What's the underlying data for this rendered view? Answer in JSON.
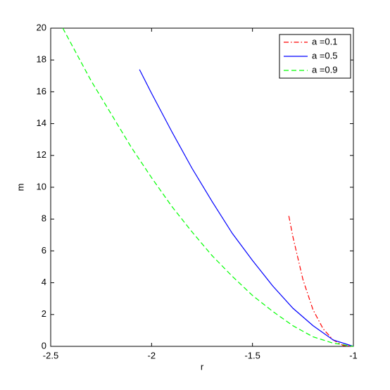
{
  "chart_data": {
    "type": "line",
    "xlabel": "r",
    "ylabel": "m",
    "xlim": [
      -2.5,
      -1
    ],
    "xticks": [
      -2.5,
      -2,
      -1.5,
      -1
    ],
    "ylim": [
      0,
      20
    ],
    "yticks": [
      0,
      2,
      4,
      6,
      8,
      10,
      12,
      14,
      16,
      18,
      20
    ],
    "legend": "upper right",
    "series": [
      {
        "name": "a =0.1",
        "color": "#ff0000",
        "dash": "dashdot",
        "x": [
          -1.32,
          -1.3,
          -1.25,
          -1.2,
          -1.15,
          -1.1,
          -1.05,
          -1
        ],
        "values": [
          8.2,
          6.9,
          4.2,
          2.3,
          1.1,
          0.4,
          0.05,
          0
        ]
      },
      {
        "name": "a =0.5",
        "color": "#0000ff",
        "dash": "solid",
        "x": [
          -2.06,
          -2,
          -1.9,
          -1.8,
          -1.7,
          -1.6,
          -1.5,
          -1.4,
          -1.3,
          -1.2,
          -1.1,
          -1
        ],
        "values": [
          17.4,
          15.9,
          13.5,
          11.2,
          9.1,
          7.1,
          5.4,
          3.8,
          2.4,
          1.3,
          0.4,
          0
        ]
      },
      {
        "name": "a =0.9",
        "color": "#00ff00",
        "dash": "dashed",
        "x": [
          -2.44,
          -2.3,
          -2.2,
          -2.1,
          -2,
          -1.9,
          -1.8,
          -1.7,
          -1.6,
          -1.5,
          -1.4,
          -1.3,
          -1.2,
          -1.1,
          -1
        ],
        "values": [
          20,
          16.7,
          14.6,
          12.5,
          10.6,
          8.8,
          7.2,
          5.7,
          4.4,
          3.2,
          2.2,
          1.3,
          0.6,
          0.2,
          0
        ]
      }
    ]
  }
}
